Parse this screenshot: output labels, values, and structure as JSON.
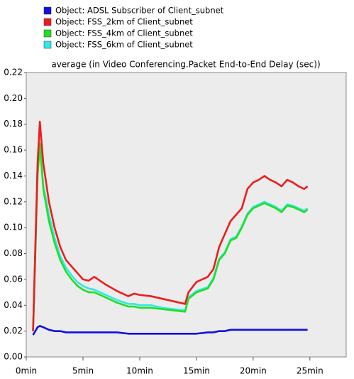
{
  "chart_data": {
    "type": "line",
    "subtitle": "average (in Video Conferencing.Packet End-to-End Delay (sec))",
    "x": [
      0.6,
      1,
      1.2,
      1.5,
      2,
      2.5,
      3,
      3.5,
      4,
      4.5,
      5,
      5.5,
      6,
      7,
      8,
      9,
      9.5,
      10,
      11,
      12,
      13,
      14,
      14.3,
      15,
      16,
      16.5,
      17,
      17.5,
      18,
      18.5,
      19,
      19.5,
      20,
      20.5,
      21,
      21.5,
      22,
      22.5,
      23,
      23.5,
      24,
      24.5,
      24.8
    ],
    "series": [
      {
        "name": "Object: ADSL Subscriber of Client_subnet",
        "color": "#1010e0",
        "values": [
          0.017,
          0.023,
          0.024,
          0.023,
          0.021,
          0.02,
          0.02,
          0.019,
          0.019,
          0.019,
          0.019,
          0.019,
          0.019,
          0.019,
          0.019,
          0.018,
          0.018,
          0.018,
          0.018,
          0.018,
          0.018,
          0.018,
          0.018,
          0.018,
          0.019,
          0.019,
          0.02,
          0.02,
          0.021,
          0.021,
          0.021,
          0.021,
          0.021,
          0.021,
          0.021,
          0.021,
          0.021,
          0.021,
          0.021,
          0.021,
          0.021,
          0.021,
          0.021
        ]
      },
      {
        "name": "Object: FSS_2km of Client_subnet",
        "color": "#ee1c1c",
        "values": [
          0.02,
          0.15,
          0.182,
          0.15,
          0.12,
          0.1,
          0.085,
          0.075,
          0.07,
          0.065,
          0.06,
          0.059,
          0.062,
          0.056,
          0.051,
          0.047,
          0.049,
          0.048,
          0.047,
          0.045,
          0.043,
          0.041,
          0.05,
          0.058,
          0.062,
          0.068,
          0.085,
          0.095,
          0.105,
          0.11,
          0.115,
          0.13,
          0.135,
          0.137,
          0.14,
          0.137,
          0.135,
          0.132,
          0.137,
          0.135,
          0.132,
          0.13,
          0.132
        ]
      },
      {
        "name": "Object: FSS_4km of Client_subnet",
        "color": "#22e022",
        "values": [
          0.02,
          0.14,
          0.165,
          0.13,
          0.105,
          0.088,
          0.075,
          0.066,
          0.06,
          0.055,
          0.052,
          0.05,
          0.05,
          0.046,
          0.042,
          0.039,
          0.039,
          0.038,
          0.038,
          0.037,
          0.036,
          0.035,
          0.045,
          0.05,
          0.053,
          0.06,
          0.075,
          0.08,
          0.09,
          0.092,
          0.1,
          0.11,
          0.115,
          0.117,
          0.119,
          0.117,
          0.115,
          0.112,
          0.117,
          0.116,
          0.114,
          0.112,
          0.114
        ]
      },
      {
        "name": "Object: FSS_6km of Client_subnet",
        "color": "#30e8e8",
        "values": [
          0.02,
          0.142,
          0.163,
          0.133,
          0.11,
          0.092,
          0.078,
          0.069,
          0.063,
          0.058,
          0.055,
          0.053,
          0.052,
          0.048,
          0.044,
          0.041,
          0.041,
          0.04,
          0.04,
          0.038,
          0.037,
          0.036,
          0.046,
          0.051,
          0.054,
          0.061,
          0.076,
          0.081,
          0.091,
          0.093,
          0.101,
          0.111,
          0.116,
          0.118,
          0.12,
          0.118,
          0.116,
          0.113,
          0.118,
          0.117,
          0.115,
          0.113,
          0.115
        ]
      }
    ],
    "draw_order": [
      0,
      3,
      2,
      1
    ],
    "xlim": [
      0,
      28.2
    ],
    "ylim": [
      0,
      0.22
    ],
    "xticks": [
      {
        "value": 0,
        "label": "0min"
      },
      {
        "value": 5,
        "label": "5min"
      },
      {
        "value": 10,
        "label": "10min"
      },
      {
        "value": 15,
        "label": "15min"
      },
      {
        "value": 20,
        "label": "20min"
      },
      {
        "value": 25,
        "label": "25min"
      }
    ],
    "yticks": [
      {
        "value": 0,
        "label": "0.00"
      },
      {
        "value": 0.02,
        "label": "0.02"
      },
      {
        "value": 0.04,
        "label": "0.04"
      },
      {
        "value": 0.06,
        "label": "0.06"
      },
      {
        "value": 0.08,
        "label": "0.08"
      },
      {
        "value": 0.1,
        "label": "0.10"
      },
      {
        "value": 0.12,
        "label": "0.12"
      },
      {
        "value": 0.14,
        "label": "0.14"
      },
      {
        "value": 0.16,
        "label": "0.16"
      },
      {
        "value": 0.18,
        "label": "0.18"
      },
      {
        "value": 0.2,
        "label": "0.20"
      },
      {
        "value": 0.22,
        "label": "0.22"
      }
    ],
    "grid": false
  }
}
